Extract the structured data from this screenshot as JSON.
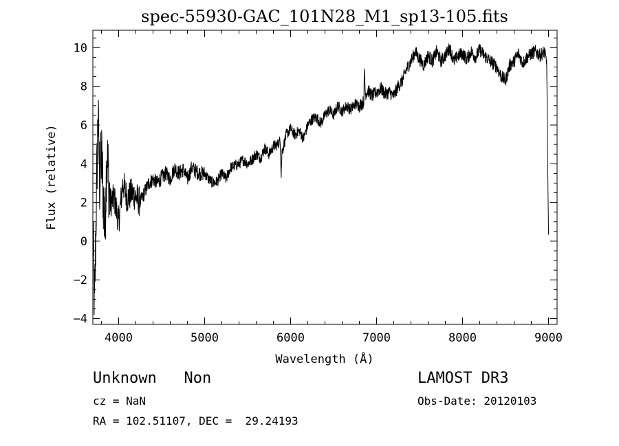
{
  "chart_data": {
    "type": "line",
    "title": "spec-55930-GAC_101N28_M1_sp13-105.fits",
    "xlabel": "Wavelength (Å)",
    "ylabel": "Flux (relative)",
    "xlim": [
      3700,
      9100
    ],
    "ylim": [
      -4.3,
      10.9
    ],
    "xticks": [
      4000,
      5000,
      6000,
      7000,
      8000,
      9000
    ],
    "yticks": [
      -4,
      -2,
      0,
      2,
      4,
      6,
      8,
      10
    ],
    "grid": false,
    "series": [
      {
        "x": [
          3700,
          3720,
          3740,
          3760,
          3780,
          3800,
          3820,
          3840,
          3860,
          3880,
          3900,
          3950,
          4000,
          4050,
          4100,
          4150,
          4200,
          4250,
          4300,
          4350,
          4400,
          4450,
          4500,
          4550,
          4600,
          4650,
          4700,
          4750,
          4800,
          4850,
          4900,
          4950,
          5000,
          5050,
          5100,
          5150,
          5200,
          5250,
          5300,
          5350,
          5400,
          5450,
          5500,
          5550,
          5600,
          5650,
          5700,
          5750,
          5800,
          5850,
          5880,
          5890,
          5900,
          5950,
          6000,
          6050,
          6100,
          6150,
          6200,
          6250,
          6300,
          6350,
          6400,
          6450,
          6500,
          6550,
          6600,
          6650,
          6700,
          6750,
          6800,
          6850,
          6860,
          6870,
          6900,
          6950,
          7000,
          7050,
          7100,
          7150,
          7200,
          7250,
          7300,
          7350,
          7400,
          7450,
          7500,
          7550,
          7600,
          7650,
          7700,
          7750,
          7800,
          7850,
          7900,
          7950,
          8000,
          8050,
          8100,
          8150,
          8200,
          8250,
          8300,
          8350,
          8400,
          8450,
          8500,
          8550,
          8600,
          8650,
          8700,
          8750,
          8800,
          8850,
          8900,
          8950,
          8980,
          8990,
          9000
        ],
        "y": [
          0.5,
          -3.5,
          2.0,
          6.5,
          3.0,
          4.5,
          2.5,
          0.5,
          4.5,
          3.5,
          2.0,
          2.2,
          1.0,
          3.0,
          2.2,
          2.5,
          2.3,
          2.0,
          2.5,
          3.0,
          3.2,
          3.0,
          3.3,
          3.5,
          3.2,
          3.8,
          3.5,
          3.7,
          3.2,
          3.8,
          3.6,
          3.5,
          3.5,
          3.2,
          3.0,
          3.1,
          3.5,
          3.2,
          3.8,
          3.9,
          4.0,
          4.2,
          4.0,
          4.2,
          4.5,
          4.3,
          4.8,
          4.5,
          4.9,
          5.0,
          5.2,
          3.5,
          4.6,
          5.5,
          5.8,
          5.5,
          5.7,
          5.3,
          6.0,
          6.3,
          6.4,
          6.1,
          6.5,
          6.8,
          6.5,
          7.0,
          6.7,
          7.0,
          6.8,
          7.1,
          7.0,
          7.2,
          8.8,
          7.6,
          7.8,
          7.5,
          7.7,
          7.9,
          7.6,
          7.7,
          7.5,
          8.0,
          8.3,
          8.9,
          9.3,
          9.8,
          9.4,
          9.1,
          9.6,
          9.3,
          9.8,
          9.3,
          9.6,
          10.0,
          9.3,
          9.6,
          9.7,
          9.4,
          9.8,
          9.5,
          9.9,
          9.6,
          9.4,
          9.2,
          9.0,
          8.5,
          8.3,
          9.1,
          9.3,
          9.7,
          9.2,
          9.5,
          9.7,
          9.8,
          9.6,
          9.8,
          9.2,
          4.0,
          0.2
        ]
      }
    ]
  },
  "info": {
    "line1_left": "Unknown   Non",
    "line1_right": "LAMOST DR3",
    "cz": "cz = NaN",
    "obs_date": "Obs-Date: 20120103",
    "radec": "RA = 102.51107, DEC =  29.24193"
  }
}
